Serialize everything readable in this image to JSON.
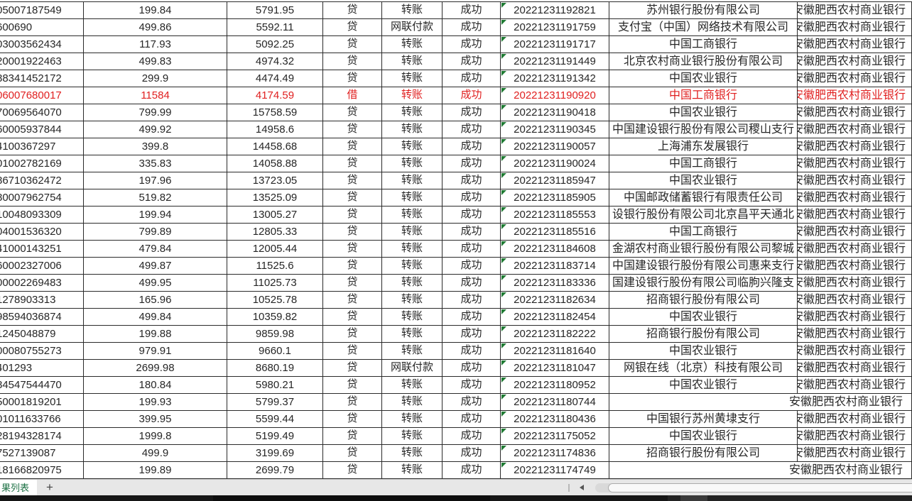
{
  "sheet_bar": {
    "active_tab": "果列表",
    "add_label": "+"
  },
  "colors": {
    "accent_red": "#e02020",
    "excel_tab_green": "#1e7145",
    "indicator_triangle_green": "#1f7a33",
    "grid_border": "#2b2b2b"
  },
  "table": {
    "columns": [
      "account_id",
      "amount",
      "balance",
      "debit_credit",
      "txn_type",
      "status",
      "timestamp",
      "counterparty_bank",
      "own_bank"
    ],
    "own_bank_default": "安徽肥西农村商业银行",
    "rows": [
      {
        "id": "05007187549",
        "amount": "199.84",
        "balance": "5791.95",
        "dc": "贷",
        "type": "转账",
        "status": "成功",
        "ts": "20221231192821",
        "bank": "苏州银行股份有限公司",
        "own": "安徽肥西农村商业银行",
        "red": false
      },
      {
        "id": "600690",
        "amount": "499.86",
        "balance": "5592.11",
        "dc": "贷",
        "type": "网联付款",
        "status": "成功",
        "ts": "20221231191759",
        "bank": "支付宝（中国）网络技术有限公司",
        "own": "安徽肥西农村商业银行",
        "red": false
      },
      {
        "id": "03003562434",
        "amount": "117.93",
        "balance": "5092.25",
        "dc": "贷",
        "type": "转账",
        "status": "成功",
        "ts": "20221231191717",
        "bank": "中国工商银行",
        "own": "安徽肥西农村商业银行",
        "red": false
      },
      {
        "id": "20001922463",
        "amount": "499.83",
        "balance": "4974.32",
        "dc": "贷",
        "type": "转账",
        "status": "成功",
        "ts": "20221231191449",
        "bank": "北京农村商业银行股份有限公司",
        "own": "安徽肥西农村商业银行",
        "red": false
      },
      {
        "id": "88341452172",
        "amount": "299.9",
        "balance": "4474.49",
        "dc": "贷",
        "type": "转账",
        "status": "成功",
        "ts": "20221231191342",
        "bank": "中国农业银行",
        "own": "安徽肥西农村商业银行",
        "red": false
      },
      {
        "id": "06007680017",
        "amount": "11584",
        "balance": "4174.59",
        "dc": "借",
        "type": "转账",
        "status": "成功",
        "ts": "20221231190920",
        "bank": "中国工商银行",
        "own": "安徽肥西农村商业银行",
        "red": true
      },
      {
        "id": "70069564070",
        "amount": "799.99",
        "balance": "15758.59",
        "dc": "贷",
        "type": "转账",
        "status": "成功",
        "ts": "20221231190418",
        "bank": "中国农业银行",
        "own": "安徽肥西农村商业银行",
        "red": false
      },
      {
        "id": "60005937844",
        "amount": "499.92",
        "balance": "14958.6",
        "dc": "贷",
        "type": "转账",
        "status": "成功",
        "ts": "20221231190345",
        "bank": "中国建设银行股份有限公司稷山支行",
        "own": "安徽肥西农村商业银行",
        "red": false
      },
      {
        "id": "4100367297",
        "amount": "399.8",
        "balance": "14458.68",
        "dc": "贷",
        "type": "转账",
        "status": "成功",
        "ts": "20221231190057",
        "bank": "上海浦东发展银行",
        "own": "安徽肥西农村商业银行",
        "red": false
      },
      {
        "id": "01002782169",
        "amount": "335.83",
        "balance": "14058.88",
        "dc": "贷",
        "type": "转账",
        "status": "成功",
        "ts": "20221231190024",
        "bank": "中国工商银行",
        "own": "安徽肥西农村商业银行",
        "red": false
      },
      {
        "id": "86710362472",
        "amount": "197.96",
        "balance": "13723.05",
        "dc": "贷",
        "type": "转账",
        "status": "成功",
        "ts": "20221231185947",
        "bank": "中国农业银行",
        "own": "安徽肥西农村商业银行",
        "red": false
      },
      {
        "id": "80007962754",
        "amount": "519.82",
        "balance": "13525.09",
        "dc": "贷",
        "type": "转账",
        "status": "成功",
        "ts": "20221231185905",
        "bank": "中国邮政储蓄银行有限责任公司",
        "own": "安徽肥西农村商业银行",
        "red": false
      },
      {
        "id": "10048093309",
        "amount": "199.94",
        "balance": "13005.27",
        "dc": "贷",
        "type": "转账",
        "status": "成功",
        "ts": "20221231185553",
        "bank": "设银行股份有限公司北京昌平天通北",
        "own": "安徽肥西农村商业银行",
        "red": false
      },
      {
        "id": "04001536320",
        "amount": "799.89",
        "balance": "12805.33",
        "dc": "贷",
        "type": "转账",
        "status": "成功",
        "ts": "20221231185516",
        "bank": "中国工商银行",
        "own": "安徽肥西农村商业银行",
        "red": false
      },
      {
        "id": "41000143251",
        "amount": "479.84",
        "balance": "12005.44",
        "dc": "贷",
        "type": "转账",
        "status": "成功",
        "ts": "20221231184608",
        "bank": "金湖农村商业银行股份有限公司黎城",
        "own": "安徽肥西农村商业银行",
        "red": false
      },
      {
        "id": "60002327006",
        "amount": "499.87",
        "balance": "11525.6",
        "dc": "贷",
        "type": "转账",
        "status": "成功",
        "ts": "20221231183714",
        "bank": "中国建设银行股份有限公司惠来支行",
        "own": "安徽肥西农村商业银行",
        "red": false
      },
      {
        "id": "00002269483",
        "amount": "499.95",
        "balance": "11025.73",
        "dc": "贷",
        "type": "转账",
        "status": "成功",
        "ts": "20221231183336",
        "bank": "国建设银行股份有限公司临朐兴隆支",
        "own": "安徽肥西农村商业银行",
        "red": false
      },
      {
        "id": "1278903313",
        "amount": "165.96",
        "balance": "10525.78",
        "dc": "贷",
        "type": "转账",
        "status": "成功",
        "ts": "20221231182634",
        "bank": "招商银行股份有限公司",
        "own": "安徽肥西农村商业银行",
        "red": false
      },
      {
        "id": "98594036874",
        "amount": "499.84",
        "balance": "10359.82",
        "dc": "贷",
        "type": "转账",
        "status": "成功",
        "ts": "20221231182454",
        "bank": "中国农业银行",
        "own": "安徽肥西农村商业银行",
        "red": false
      },
      {
        "id": "1245048879",
        "amount": "199.88",
        "balance": "9859.98",
        "dc": "贷",
        "type": "转账",
        "status": "成功",
        "ts": "20221231182222",
        "bank": "招商银行股份有限公司",
        "own": "安徽肥西农村商业银行",
        "red": false
      },
      {
        "id": "00080755273",
        "amount": "979.91",
        "balance": "9660.1",
        "dc": "贷",
        "type": "转账",
        "status": "成功",
        "ts": "20221231181640",
        "bank": "中国农业银行",
        "own": "安徽肥西农村商业银行",
        "red": false
      },
      {
        "id": "401293",
        "amount": "2699.98",
        "balance": "8680.19",
        "dc": "贷",
        "type": "网联付款",
        "status": "成功",
        "ts": "20221231181047",
        "bank": "网银在线（北京）科技有限公司",
        "own": "安徽肥西农村商业银行",
        "red": false
      },
      {
        "id": "84547544470",
        "amount": "180.84",
        "balance": "5980.21",
        "dc": "贷",
        "type": "转账",
        "status": "成功",
        "ts": "20221231180952",
        "bank": "中国农业银行",
        "own": "安徽肥西农村商业银行",
        "red": false
      },
      {
        "id": "50001819201",
        "amount": "199.93",
        "balance": "5799.37",
        "dc": "贷",
        "type": "转账",
        "status": "成功",
        "ts": "20221231180744",
        "bank": "",
        "own": "安徽肥西农村商业银行",
        "red": false
      },
      {
        "id": "01011633766",
        "amount": "399.95",
        "balance": "5599.44",
        "dc": "贷",
        "type": "转账",
        "status": "成功",
        "ts": "20221231180436",
        "bank": "中国银行苏州黄埭支行",
        "own": "安徽肥西农村商业银行",
        "red": false
      },
      {
        "id": "28194328174",
        "amount": "1999.8",
        "balance": "5199.49",
        "dc": "贷",
        "type": "转账",
        "status": "成功",
        "ts": "20221231175052",
        "bank": "中国农业银行",
        "own": "安徽肥西农村商业银行",
        "red": false
      },
      {
        "id": "7527139087",
        "amount": "499.9",
        "balance": "3199.69",
        "dc": "贷",
        "type": "转账",
        "status": "成功",
        "ts": "20221231174836",
        "bank": "招商银行股份有限公司",
        "own": "安徽肥西农村商业银行",
        "red": false
      },
      {
        "id": "18166820975",
        "amount": "199.89",
        "balance": "2699.79",
        "dc": "贷",
        "type": "转账",
        "status": "成功",
        "ts": "20221231174749",
        "bank": "",
        "own": "安徽肥西农村商业银行",
        "red": false
      }
    ]
  }
}
